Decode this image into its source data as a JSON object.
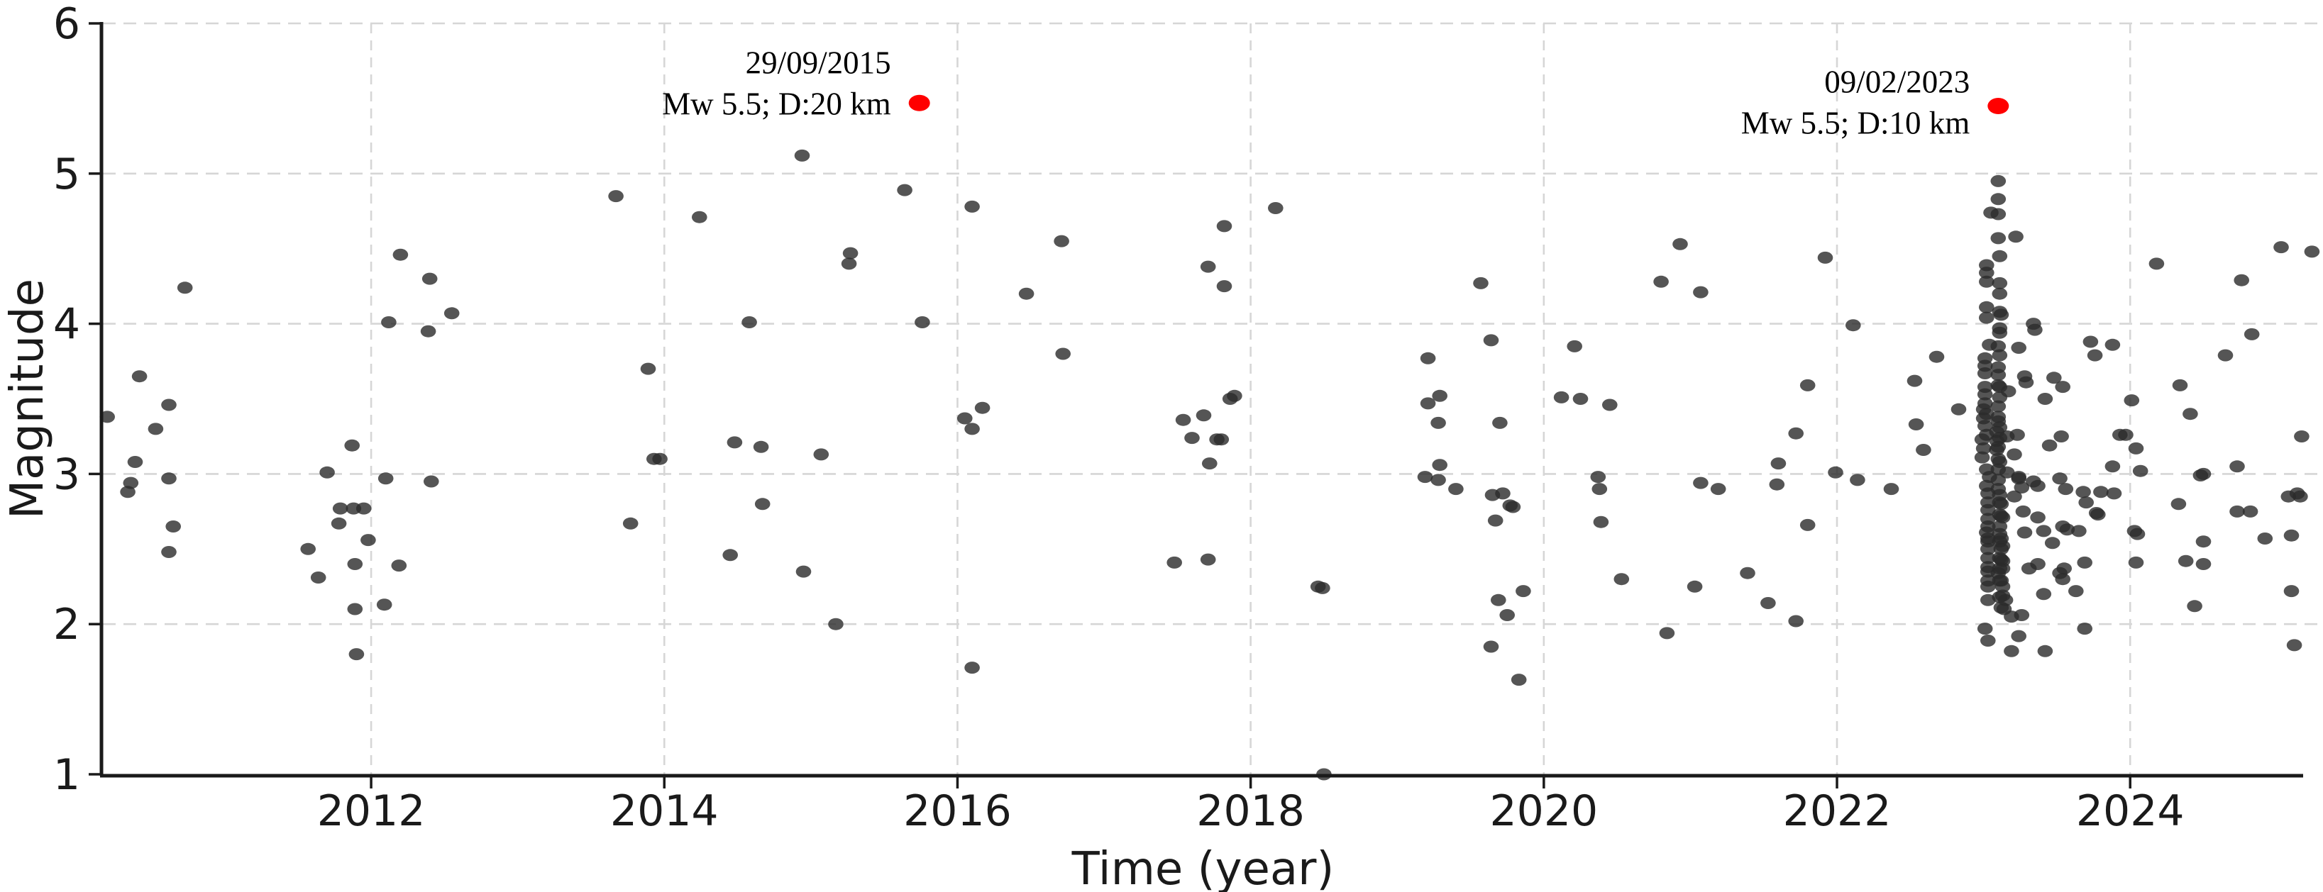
{
  "chart_data": {
    "type": "scatter",
    "title": "",
    "xlabel": "Time (year)",
    "ylabel": "Magnitude",
    "xlim": [
      2010.17,
      2025.18
    ],
    "ylim": [
      1,
      6
    ],
    "x_ticks": [
      2012,
      2014,
      2016,
      2018,
      2020,
      2022,
      2024
    ],
    "y_ticks": [
      1,
      2,
      3,
      4,
      5,
      6
    ],
    "grid": "dashed",
    "grid_color": "#d6d6d6",
    "point_color": "#2b2b2b",
    "point_opacity": 0.8,
    "highlight_color": "#ff0000",
    "legend_position": "none",
    "points": [
      [
        2010.2,
        3.38
      ],
      [
        2010.34,
        2.88
      ],
      [
        2010.36,
        2.94
      ],
      [
        2010.39,
        3.08
      ],
      [
        2010.42,
        3.65
      ],
      [
        2010.53,
        3.3
      ],
      [
        2010.62,
        3.46
      ],
      [
        2010.62,
        2.97
      ],
      [
        2010.62,
        2.48
      ],
      [
        2010.65,
        2.65
      ],
      [
        2010.73,
        4.24
      ],
      [
        2011.57,
        2.5
      ],
      [
        2011.64,
        2.31
      ],
      [
        2011.7,
        3.01
      ],
      [
        2011.78,
        2.67
      ],
      [
        2011.79,
        2.77
      ],
      [
        2011.87,
        3.19
      ],
      [
        2011.88,
        2.77
      ],
      [
        2011.89,
        2.4
      ],
      [
        2011.89,
        2.1
      ],
      [
        2011.9,
        1.8
      ],
      [
        2011.95,
        2.77
      ],
      [
        2011.98,
        2.56
      ],
      [
        2012.09,
        2.13
      ],
      [
        2012.1,
        2.97
      ],
      [
        2012.12,
        4.01
      ],
      [
        2012.19,
        2.39
      ],
      [
        2012.2,
        4.46
      ],
      [
        2012.39,
        3.95
      ],
      [
        2012.4,
        4.3
      ],
      [
        2012.41,
        2.95
      ],
      [
        2012.55,
        4.07
      ],
      [
        2013.67,
        4.85
      ],
      [
        2013.77,
        2.67
      ],
      [
        2013.89,
        3.7
      ],
      [
        2013.93,
        3.1
      ],
      [
        2013.97,
        3.1
      ],
      [
        2014.24,
        4.71
      ],
      [
        2014.45,
        2.46
      ],
      [
        2014.48,
        3.21
      ],
      [
        2014.58,
        4.01
      ],
      [
        2014.66,
        3.18
      ],
      [
        2014.67,
        2.8
      ],
      [
        2014.94,
        5.12
      ],
      [
        2014.95,
        2.35
      ],
      [
        2015.07,
        3.13
      ],
      [
        2015.17,
        2.0
      ],
      [
        2015.26,
        4.4
      ],
      [
        2015.27,
        4.47
      ],
      [
        2015.64,
        4.89
      ],
      [
        2015.76,
        4.01
      ],
      [
        2016.05,
        3.37
      ],
      [
        2016.1,
        4.78
      ],
      [
        2016.1,
        3.3
      ],
      [
        2016.1,
        1.71
      ],
      [
        2016.17,
        3.44
      ],
      [
        2016.47,
        4.2
      ],
      [
        2016.71,
        4.55
      ],
      [
        2016.72,
        3.8
      ],
      [
        2017.48,
        2.41
      ],
      [
        2017.54,
        3.36
      ],
      [
        2017.6,
        3.24
      ],
      [
        2017.68,
        3.39
      ],
      [
        2017.71,
        4.38
      ],
      [
        2017.71,
        2.43
      ],
      [
        2017.72,
        3.07
      ],
      [
        2017.77,
        3.23
      ],
      [
        2017.8,
        3.23
      ],
      [
        2017.82,
        4.65
      ],
      [
        2017.82,
        4.25
      ],
      [
        2017.86,
        3.5
      ],
      [
        2017.89,
        3.52
      ],
      [
        2018.17,
        4.77
      ],
      [
        2018.46,
        2.25
      ],
      [
        2018.49,
        2.24
      ],
      [
        2018.5,
        1.0
      ],
      [
        2019.19,
        2.98
      ],
      [
        2019.21,
        3.77
      ],
      [
        2019.21,
        3.47
      ],
      [
        2019.28,
        3.34
      ],
      [
        2019.28,
        2.96
      ],
      [
        2019.29,
        3.52
      ],
      [
        2019.29,
        3.06
      ],
      [
        2019.4,
        2.9
      ],
      [
        2019.57,
        4.27
      ],
      [
        2019.64,
        3.89
      ],
      [
        2019.64,
        1.85
      ],
      [
        2019.65,
        2.86
      ],
      [
        2019.67,
        2.69
      ],
      [
        2019.69,
        2.16
      ],
      [
        2019.7,
        3.34
      ],
      [
        2019.72,
        2.87
      ],
      [
        2019.75,
        2.06
      ],
      [
        2019.77,
        2.79
      ],
      [
        2019.79,
        2.78
      ],
      [
        2019.83,
        1.63
      ],
      [
        2019.86,
        2.22
      ],
      [
        2020.12,
        3.51
      ],
      [
        2020.21,
        3.85
      ],
      [
        2020.25,
        3.5
      ],
      [
        2020.37,
        2.98
      ],
      [
        2020.38,
        2.9
      ],
      [
        2020.39,
        2.68
      ],
      [
        2020.45,
        3.46
      ],
      [
        2020.53,
        2.3
      ],
      [
        2020.8,
        4.28
      ],
      [
        2020.84,
        1.94
      ],
      [
        2020.93,
        4.53
      ],
      [
        2021.03,
        2.25
      ],
      [
        2021.07,
        4.21
      ],
      [
        2021.07,
        2.94
      ],
      [
        2021.19,
        2.9
      ],
      [
        2021.39,
        2.34
      ],
      [
        2021.53,
        2.14
      ],
      [
        2021.59,
        2.93
      ],
      [
        2021.6,
        3.07
      ],
      [
        2021.72,
        3.27
      ],
      [
        2021.72,
        2.02
      ],
      [
        2021.8,
        3.59
      ],
      [
        2021.8,
        2.66
      ],
      [
        2021.92,
        4.44
      ],
      [
        2021.99,
        3.01
      ],
      [
        2022.11,
        3.99
      ],
      [
        2022.14,
        2.96
      ],
      [
        2022.37,
        2.9
      ],
      [
        2022.53,
        3.62
      ],
      [
        2022.54,
        3.33
      ],
      [
        2022.59,
        3.16
      ],
      [
        2022.68,
        3.78
      ],
      [
        2022.83,
        3.43
      ],
      [
        2022.99,
        3.23
      ],
      [
        2022.99,
        3.11
      ],
      [
        2023.0,
        3.43
      ],
      [
        2023.0,
        3.37
      ],
      [
        2023.0,
        3.17
      ],
      [
        2023.01,
        3.77
      ],
      [
        2023.01,
        3.72
      ],
      [
        2023.01,
        3.67
      ],
      [
        2023.01,
        3.58
      ],
      [
        2023.01,
        3.53
      ],
      [
        2023.01,
        3.47
      ],
      [
        2023.01,
        3.32
      ],
      [
        2023.01,
        1.97
      ],
      [
        2023.02,
        4.39
      ],
      [
        2023.02,
        4.34
      ],
      [
        2023.02,
        4.28
      ],
      [
        2023.02,
        4.11
      ],
      [
        2023.02,
        4.04
      ],
      [
        2023.02,
        3.4
      ],
      [
        2023.02,
        3.26
      ],
      [
        2023.02,
        3.03
      ],
      [
        2023.02,
        2.92
      ],
      [
        2023.02,
        2.61
      ],
      [
        2023.03,
        2.87
      ],
      [
        2023.03,
        2.81
      ],
      [
        2023.03,
        2.76
      ],
      [
        2023.03,
        2.7
      ],
      [
        2023.03,
        2.65
      ],
      [
        2023.03,
        2.57
      ],
      [
        2023.03,
        2.55
      ],
      [
        2023.03,
        2.5
      ],
      [
        2023.03,
        2.44
      ],
      [
        2023.03,
        2.38
      ],
      [
        2023.03,
        2.35
      ],
      [
        2023.03,
        2.29
      ],
      [
        2023.03,
        2.25
      ],
      [
        2023.03,
        2.16
      ],
      [
        2023.03,
        1.89
      ],
      [
        2023.04,
        3.86
      ],
      [
        2023.04,
        2.98
      ],
      [
        2023.05,
        4.74
      ],
      [
        2023.09,
        3.28
      ],
      [
        2023.09,
        3.22
      ],
      [
        2023.09,
        3.16
      ],
      [
        2023.1,
        4.95
      ],
      [
        2023.1,
        4.83
      ],
      [
        2023.1,
        4.73
      ],
      [
        2023.1,
        4.57
      ],
      [
        2023.1,
        3.85
      ],
      [
        2023.1,
        3.71
      ],
      [
        2023.1,
        3.66
      ],
      [
        2023.1,
        3.59
      ],
      [
        2023.1,
        3.45
      ],
      [
        2023.1,
        3.38
      ],
      [
        2023.1,
        3.35
      ],
      [
        2023.1,
        3.18
      ],
      [
        2023.1,
        3.1
      ],
      [
        2023.1,
        3.03
      ],
      [
        2023.1,
        2.96
      ],
      [
        2023.1,
        2.9
      ],
      [
        2023.1,
        2.34
      ],
      [
        2023.11,
        4.45
      ],
      [
        2023.11,
        4.27
      ],
      [
        2023.11,
        4.2
      ],
      [
        2023.11,
        4.08
      ],
      [
        2023.11,
        3.97
      ],
      [
        2023.11,
        3.94
      ],
      [
        2023.11,
        3.79
      ],
      [
        2023.11,
        3.58
      ],
      [
        2023.11,
        3.51
      ],
      [
        2023.11,
        3.31
      ],
      [
        2023.11,
        3.24
      ],
      [
        2023.11,
        3.08
      ],
      [
        2023.11,
        2.86
      ],
      [
        2023.11,
        2.81
      ],
      [
        2023.11,
        2.73
      ],
      [
        2023.11,
        2.65
      ],
      [
        2023.11,
        2.6
      ],
      [
        2023.11,
        2.55
      ],
      [
        2023.11,
        2.44
      ],
      [
        2023.11,
        2.37
      ],
      [
        2023.11,
        2.29
      ],
      [
        2023.11,
        2.18
      ],
      [
        2023.12,
        4.06
      ],
      [
        2023.12,
        2.8
      ],
      [
        2023.12,
        2.72
      ],
      [
        2023.12,
        2.57
      ],
      [
        2023.12,
        2.5
      ],
      [
        2023.12,
        2.43
      ],
      [
        2023.12,
        2.29
      ],
      [
        2023.12,
        2.11
      ],
      [
        2023.13,
        2.71
      ],
      [
        2023.13,
        2.52
      ],
      [
        2023.13,
        2.42
      ],
      [
        2023.13,
        2.37
      ],
      [
        2023.13,
        2.25
      ],
      [
        2023.13,
        2.19
      ],
      [
        2023.14,
        2.1
      ],
      [
        2023.15,
        2.16
      ],
      [
        2023.16,
        3.25
      ],
      [
        2023.16,
        3.01
      ],
      [
        2023.17,
        3.55
      ],
      [
        2023.19,
        2.05
      ],
      [
        2023.19,
        1.82
      ],
      [
        2023.21,
        3.13
      ],
      [
        2023.21,
        2.85
      ],
      [
        2023.22,
        4.58
      ],
      [
        2023.23,
        3.26
      ],
      [
        2023.24,
        3.84
      ],
      [
        2023.24,
        2.98
      ],
      [
        2023.24,
        2.97
      ],
      [
        2023.24,
        1.92
      ],
      [
        2023.26,
        2.91
      ],
      [
        2023.26,
        2.06
      ],
      [
        2023.27,
        2.75
      ],
      [
        2023.28,
        3.65
      ],
      [
        2023.28,
        2.61
      ],
      [
        2023.29,
        3.61
      ],
      [
        2023.31,
        2.37
      ],
      [
        2023.34,
        4.0
      ],
      [
        2023.34,
        2.95
      ],
      [
        2023.35,
        3.96
      ],
      [
        2023.37,
        2.92
      ],
      [
        2023.37,
        2.71
      ],
      [
        2023.37,
        2.4
      ],
      [
        2023.41,
        2.62
      ],
      [
        2023.41,
        2.2
      ],
      [
        2023.42,
        3.5
      ],
      [
        2023.42,
        1.82
      ],
      [
        2023.45,
        3.19
      ],
      [
        2023.47,
        2.54
      ],
      [
        2023.48,
        3.64
      ],
      [
        2023.52,
        2.97
      ],
      [
        2023.52,
        2.34
      ],
      [
        2023.53,
        3.25
      ],
      [
        2023.54,
        3.58
      ],
      [
        2023.54,
        2.65
      ],
      [
        2023.54,
        2.3
      ],
      [
        2023.55,
        2.37
      ],
      [
        2023.56,
        2.9
      ],
      [
        2023.57,
        2.63
      ],
      [
        2023.63,
        2.22
      ],
      [
        2023.65,
        2.62
      ],
      [
        2023.68,
        2.88
      ],
      [
        2023.69,
        2.41
      ],
      [
        2023.69,
        1.97
      ],
      [
        2023.7,
        2.81
      ],
      [
        2023.73,
        3.88
      ],
      [
        2023.76,
        3.79
      ],
      [
        2023.77,
        2.74
      ],
      [
        2023.78,
        2.73
      ],
      [
        2023.8,
        2.88
      ],
      [
        2023.88,
        3.86
      ],
      [
        2023.88,
        3.05
      ],
      [
        2023.89,
        2.87
      ],
      [
        2023.93,
        3.26
      ],
      [
        2023.97,
        3.26
      ],
      [
        2024.01,
        3.49
      ],
      [
        2024.03,
        2.62
      ],
      [
        2024.04,
        3.17
      ],
      [
        2024.04,
        2.41
      ],
      [
        2024.05,
        2.6
      ],
      [
        2024.07,
        3.02
      ],
      [
        2024.18,
        4.4
      ],
      [
        2024.33,
        2.8
      ],
      [
        2024.34,
        3.59
      ],
      [
        2024.38,
        2.42
      ],
      [
        2024.41,
        3.4
      ],
      [
        2024.44,
        2.12
      ],
      [
        2024.48,
        2.99
      ],
      [
        2024.5,
        3.0
      ],
      [
        2024.5,
        2.55
      ],
      [
        2024.5,
        2.4
      ],
      [
        2024.65,
        3.79
      ],
      [
        2024.73,
        3.05
      ],
      [
        2024.73,
        2.75
      ],
      [
        2024.76,
        4.29
      ],
      [
        2024.82,
        2.75
      ],
      [
        2024.83,
        3.93
      ],
      [
        2024.92,
        2.57
      ],
      [
        2025.03,
        4.51
      ],
      [
        2025.08,
        2.85
      ],
      [
        2025.1,
        2.59
      ],
      [
        2025.1,
        2.22
      ],
      [
        2025.12,
        1.86
      ],
      [
        2025.14,
        2.87
      ],
      [
        2025.16,
        2.85
      ],
      [
        2025.17,
        3.25
      ],
      [
        2025.24,
        4.48
      ]
    ],
    "highlighted_events": [
      {
        "label_line1": "29/09/2015",
        "label_line2": "Mw 5.5; D:20 km",
        "x": 2015.74,
        "y": 5.47
      },
      {
        "label_line1": "09/02/2023",
        "label_line2": "Mw 5.5; D:10 km",
        "x": 2023.1,
        "y": 5.45
      }
    ]
  }
}
